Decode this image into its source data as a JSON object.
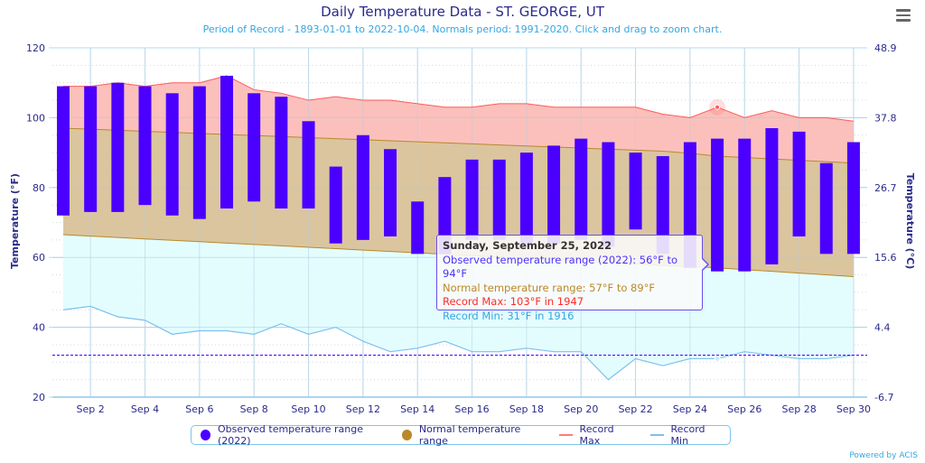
{
  "header": {
    "title": "Daily Temperature Data - ST. GEORGE, UT",
    "subtitle": "Period of Record - 1893-01-01 to 2022-10-04. Normals period: 1991-2020. Click and drag to zoom chart.",
    "menu_icon": "hamburger-menu-icon"
  },
  "footer": {
    "credit": "Powered by ACIS"
  },
  "tooltip": {
    "date": "Sunday, September 25, 2022",
    "observed": "Observed temperature range (2022): 56°F to 94°F",
    "normal": "Normal temperature range: 57°F to 89°F",
    "record_max": "Record Max: 103°F in 1947",
    "record_min": "Record Min: 31°F in 1916"
  },
  "colors": {
    "observed": "#4b00ff",
    "normal": "#b8892a",
    "normal_fill": "#d9c29a",
    "record_max": "#ff5a5a",
    "record_max_fill": "#fbbdb8",
    "record_min": "#7ec0f0",
    "record_min_fill": "#e0fdff",
    "axis_text": "#2a2a8c"
  },
  "chart_data": {
    "type": "bar",
    "title": "Daily Temperature Data - ST. GEORGE, UT",
    "subtitle": "Period of Record - 1893-01-01 to 2022-10-04. Normals period: 1991-2020. Click and drag to zoom chart.",
    "xlabel": "",
    "ylabel": "Temperature (°F)",
    "ylabel_right": "Temperature (°C)",
    "ylim": [
      20,
      120
    ],
    "yticks": [
      "20",
      "40",
      "60",
      "80",
      "100",
      "120"
    ],
    "yticks_right": [
      "-6.7",
      "4.4",
      "15.6",
      "26.7",
      "37.8",
      "48.9"
    ],
    "xticks": [
      "Sep 2",
      "Sep 4",
      "Sep 6",
      "Sep 8",
      "Sep 10",
      "Sep 12",
      "Sep 14",
      "Sep 16",
      "Sep 18",
      "Sep 20",
      "Sep 22",
      "Sep 24",
      "Sep 26",
      "Sep 28",
      "Sep 30"
    ],
    "days": [
      1,
      2,
      3,
      4,
      5,
      6,
      7,
      8,
      9,
      10,
      11,
      12,
      13,
      14,
      15,
      16,
      17,
      18,
      19,
      20,
      21,
      22,
      23,
      24,
      25,
      26,
      27,
      28,
      29,
      30
    ],
    "freezing_line": 32,
    "grid": true,
    "legend_position": "bottom",
    "legend": [
      "Observed temperature range (2022)",
      "Normal temperature range",
      "Record Max",
      "Record Min"
    ],
    "highlighted_day": 25,
    "series": [
      {
        "name": "Observed temperature range (2022)",
        "type": "columnrange",
        "low": [
          72,
          73,
          73,
          75,
          72,
          71,
          74,
          76,
          74,
          74,
          64,
          65,
          66,
          61,
          61,
          65,
          65,
          64,
          64,
          65,
          63,
          68,
          61,
          57,
          56,
          56,
          58,
          66,
          61,
          61
        ],
        "high": [
          109,
          109,
          110,
          109,
          107,
          109,
          112,
          107,
          106,
          99,
          86,
          95,
          91,
          76,
          83,
          88,
          88,
          90,
          92,
          94,
          93,
          90,
          89,
          93,
          94,
          94,
          97,
          96,
          87,
          93
        ]
      },
      {
        "name": "Normal temperature range",
        "type": "arearange",
        "low": [
          66.5,
          66.1,
          65.7,
          65.3,
          64.9,
          64.5,
          64.1,
          63.7,
          63.3,
          62.9,
          62.5,
          62.1,
          61.7,
          61.3,
          60.9,
          60.5,
          60.1,
          59.7,
          59.3,
          58.9,
          58.5,
          58.1,
          57.7,
          57.4,
          57,
          56.5,
          56,
          55.5,
          55,
          54.5
        ],
        "high": [
          97,
          96.7,
          96.4,
          96.1,
          95.8,
          95.5,
          95.2,
          94.9,
          94.6,
          94.3,
          94,
          93.7,
          93.4,
          93.1,
          92.8,
          92.5,
          92.2,
          91.9,
          91.6,
          91.3,
          91,
          90.7,
          90.4,
          89.8,
          89,
          88.6,
          88.2,
          87.8,
          87.4,
          87
        ]
      },
      {
        "name": "Record Max",
        "type": "line",
        "values": [
          109,
          109,
          110,
          109,
          110,
          110,
          112,
          108,
          107,
          105,
          106,
          105,
          105,
          104,
          103,
          103,
          104,
          104,
          103,
          103,
          103,
          103,
          101,
          100,
          103,
          100,
          102,
          100,
          100,
          99
        ]
      },
      {
        "name": "Record Min",
        "type": "line",
        "values": [
          45,
          46,
          43,
          42,
          38,
          39,
          39,
          38,
          41,
          38,
          40,
          36,
          33,
          34,
          36,
          33,
          33,
          34,
          33,
          33,
          25,
          31,
          29,
          31,
          31,
          33,
          32,
          31,
          31,
          32
        ]
      }
    ]
  }
}
